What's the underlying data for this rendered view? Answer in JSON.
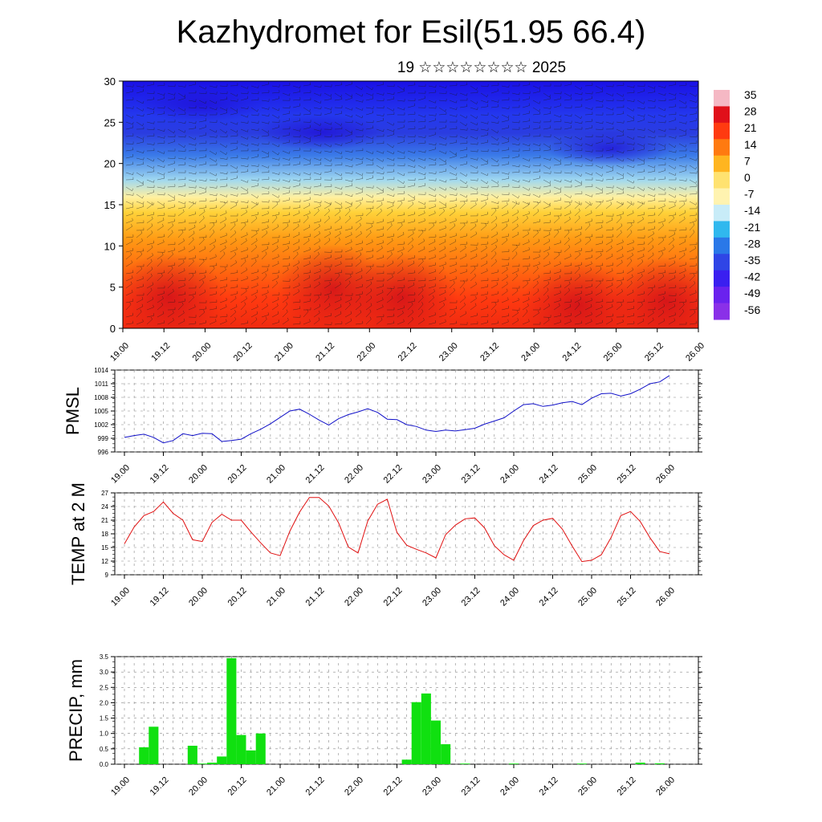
{
  "header": {
    "title": "Kazhydromet for Esil(51.95 66.4)",
    "subtitle": "19 ☆☆☆☆☆☆☆☆ 2025"
  },
  "colorbar": {
    "labels": [
      "35",
      "28",
      "21",
      "14",
      "7",
      "0",
      "-7",
      "-14",
      "-21",
      "-28",
      "-35",
      "-42",
      "-49",
      "-56"
    ],
    "colors_top_to_bottom": [
      "#f5b8c4",
      "#e0101a",
      "#ff3a10",
      "#ff7a10",
      "#ffb520",
      "#ffe270",
      "#fff3b0",
      "#c8ecf8",
      "#30b8ee",
      "#2a78e8",
      "#2f45e6",
      "#3a1ff0",
      "#6a22ee",
      "#8a30e8"
    ]
  },
  "chart_data": [
    {
      "type": "heatmap",
      "title": "",
      "ylim": [
        0,
        30
      ],
      "y_ticks": [
        "0",
        "5",
        "10",
        "15",
        "20",
        "25",
        "30"
      ],
      "x_ticks": [
        "19.00",
        "19.12",
        "20.00",
        "20.12",
        "21.00",
        "21.12",
        "22.00",
        "22.12",
        "23.00",
        "23.12",
        "24.00",
        "24.12",
        "25.00",
        "25.12",
        "26.00"
      ],
      "zlim": [
        -56,
        35
      ],
      "description_levels": "temperature field vs level with wind barbs overlaid"
    },
    {
      "type": "line",
      "ylabel": "PMSL",
      "ylim": [
        996,
        1014
      ],
      "y_ticks": [
        "996",
        "999",
        "1002",
        "1005",
        "1008",
        "1011",
        "1014"
      ],
      "x_ticks": [
        "19.00",
        "19.12",
        "20.00",
        "20.12",
        "21.00",
        "21.12",
        "22.00",
        "22.12",
        "23.00",
        "23.12",
        "24.00",
        "24.12",
        "25.00",
        "25.12",
        "26.00"
      ],
      "color": "#1010c8",
      "values": [
        999.2,
        999.6,
        999.9,
        999.2,
        998.0,
        998.5,
        1000.0,
        999.6,
        1000.1,
        1000.0,
        998.3,
        998.5,
        998.8,
        1000.0,
        1001.0,
        1002.2,
        1003.6,
        1005.0,
        1005.4,
        1004.3,
        1003.0,
        1001.9,
        1003.3,
        1004.2,
        1004.8,
        1005.5,
        1004.7,
        1003.2,
        1003.1,
        1002.0,
        1001.6,
        1000.8,
        1000.5,
        1000.8,
        1000.6,
        1000.9,
        1001.2,
        1002.1,
        1002.8,
        1003.5,
        1005.0,
        1006.4,
        1006.6,
        1006.0,
        1006.3,
        1006.8,
        1007.1,
        1006.4,
        1007.8,
        1008.8,
        1008.9,
        1008.3,
        1008.8,
        1009.8,
        1011.0,
        1011.4,
        1012.8
      ]
    },
    {
      "type": "line",
      "ylabel": "TEMP at 2 M",
      "ylim": [
        9,
        27
      ],
      "y_ticks": [
        "9",
        "12",
        "15",
        "18",
        "21",
        "24",
        "27"
      ],
      "x_ticks": [
        "19.00",
        "19.12",
        "20.00",
        "20.12",
        "21.00",
        "21.12",
        "22.00",
        "22.12",
        "23.00",
        "23.12",
        "24.00",
        "24.12",
        "25.00",
        "25.12",
        "26.00"
      ],
      "color": "#e01010",
      "values": [
        15.8,
        19.5,
        22.0,
        22.9,
        25.0,
        22.5,
        21.0,
        16.7,
        16.3,
        20.5,
        22.3,
        21.0,
        21.0,
        18.4,
        16.0,
        13.8,
        13.2,
        18.6,
        22.8,
        26.0,
        26.0,
        24.1,
        20.4,
        15.1,
        13.8,
        20.8,
        24.5,
        25.6,
        18.3,
        15.5,
        14.6,
        13.8,
        12.7,
        17.8,
        19.9,
        21.3,
        21.5,
        19.3,
        15.4,
        13.4,
        12.2,
        16.5,
        19.8,
        21.0,
        21.4,
        19.0,
        15.3,
        11.9,
        12.2,
        13.4,
        17.2,
        22.0,
        22.9,
        20.7,
        17.1,
        14.1,
        13.6
      ]
    },
    {
      "type": "bar",
      "ylabel": "PRECIP, mm",
      "ylim": [
        0,
        3.5
      ],
      "y_ticks": [
        "0.0",
        "0.5",
        "1.0",
        "1.5",
        "2.0",
        "2.5",
        "3.0",
        "3.5"
      ],
      "x_ticks": [
        "19.00",
        "19.12",
        "20.00",
        "20.12",
        "21.00",
        "21.12",
        "22.00",
        "22.12",
        "23.00",
        "23.12",
        "24.00",
        "24.12",
        "25.00",
        "25.12",
        "26.00"
      ],
      "color": "#10e010",
      "values": [
        0,
        0,
        0.55,
        1.22,
        0,
        0,
        0,
        0.6,
        0.02,
        0.05,
        0.25,
        3.45,
        0.95,
        0.45,
        1.0,
        0,
        0,
        0,
        0,
        0,
        0,
        0,
        0,
        0,
        0,
        0,
        0,
        0,
        0,
        0.15,
        2.02,
        2.3,
        1.42,
        0.65,
        0,
        0.02,
        0,
        0,
        0,
        0,
        0.02,
        0,
        0,
        0,
        0,
        0,
        0,
        0.02,
        0,
        0,
        0,
        0,
        0,
        0.05,
        0,
        0.03,
        0
      ]
    }
  ]
}
